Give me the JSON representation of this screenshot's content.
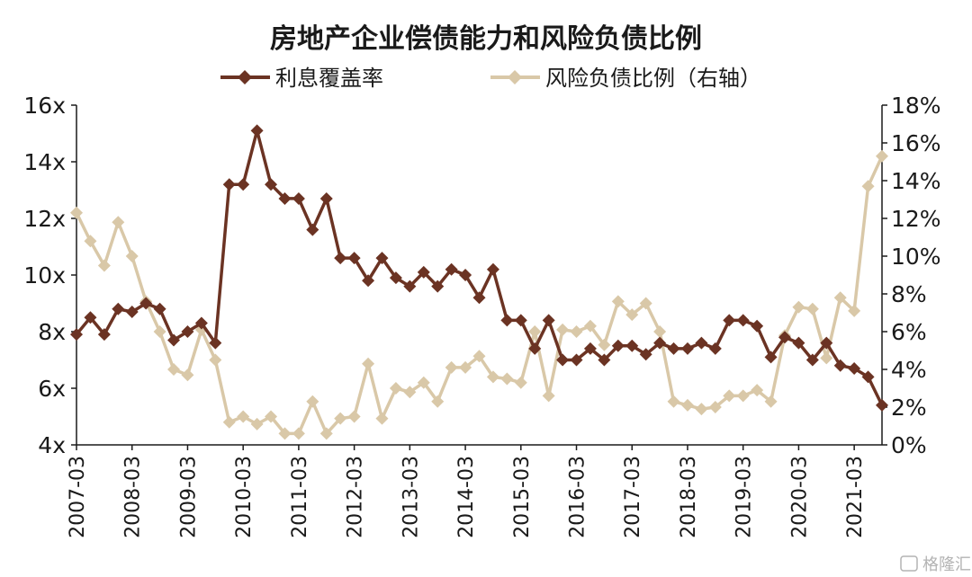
{
  "chart_data": {
    "type": "line",
    "title": "房地产企业偿债能力和风险负债比例",
    "x": [
      "2007-03",
      "2007-06",
      "2007-09",
      "2007-12",
      "2008-03",
      "2008-06",
      "2008-09",
      "2008-12",
      "2009-03",
      "2009-06",
      "2009-09",
      "2009-12",
      "2010-03",
      "2010-06",
      "2010-09",
      "2010-12",
      "2011-03",
      "2011-06",
      "2011-09",
      "2011-12",
      "2012-03",
      "2012-06",
      "2012-09",
      "2012-12",
      "2013-03",
      "2013-06",
      "2013-09",
      "2013-12",
      "2014-03",
      "2014-06",
      "2014-09",
      "2014-12",
      "2015-03",
      "2015-06",
      "2015-09",
      "2015-12",
      "2016-03",
      "2016-06",
      "2016-09",
      "2016-12",
      "2017-03",
      "2017-06",
      "2017-09",
      "2017-12",
      "2018-03",
      "2018-06",
      "2018-09",
      "2018-12",
      "2019-03",
      "2019-06",
      "2019-09",
      "2019-12",
      "2020-03",
      "2020-06",
      "2020-09",
      "2020-12",
      "2021-03",
      "2021-06",
      "2021-09"
    ],
    "xtick_labels": [
      "2007-03",
      "2008-03",
      "2009-03",
      "2010-03",
      "2011-03",
      "2012-03",
      "2013-03",
      "2014-03",
      "2015-03",
      "2016-03",
      "2017-03",
      "2018-03",
      "2019-03",
      "2020-03",
      "2021-03"
    ],
    "series": [
      {
        "name": "利息覆盖率",
        "axis": "left",
        "color": "#6b3323",
        "marker": "diamond",
        "values": [
          7.9,
          8.5,
          7.9,
          8.8,
          8.7,
          9.0,
          8.8,
          7.7,
          8.0,
          8.3,
          7.6,
          13.2,
          13.2,
          15.1,
          13.2,
          12.7,
          12.7,
          11.6,
          12.7,
          10.6,
          10.6,
          9.8,
          10.6,
          9.9,
          9.6,
          10.1,
          9.6,
          10.2,
          10.0,
          9.2,
          10.2,
          8.4,
          8.4,
          7.4,
          8.4,
          7.0,
          7.0,
          7.4,
          7.0,
          7.5,
          7.5,
          7.2,
          7.6,
          7.4,
          7.4,
          7.6,
          7.4,
          8.4,
          8.4,
          8.2,
          7.1,
          7.8,
          7.6,
          7.0,
          7.6,
          6.8,
          6.7,
          6.4,
          5.4
        ]
      },
      {
        "name": "风险负债比例（右轴）",
        "axis": "right",
        "color": "#d9c8a8",
        "marker": "diamond",
        "values": [
          12.3,
          10.8,
          9.5,
          11.8,
          10.0,
          7.6,
          6.0,
          4.0,
          3.7,
          6.1,
          4.5,
          1.2,
          1.5,
          1.1,
          1.5,
          0.6,
          0.6,
          2.3,
          0.6,
          1.4,
          1.5,
          4.3,
          1.4,
          3.0,
          2.8,
          3.3,
          2.3,
          4.1,
          4.1,
          4.7,
          3.6,
          3.5,
          3.3,
          6.0,
          2.6,
          6.1,
          6.0,
          6.3,
          5.3,
          7.6,
          6.9,
          7.5,
          6.0,
          2.3,
          2.1,
          1.9,
          2.0,
          2.6,
          2.6,
          2.9,
          2.3,
          5.8,
          7.3,
          7.2,
          4.6,
          7.8,
          7.1,
          13.7,
          15.3
        ]
      }
    ],
    "ylim_left": [
      4,
      16
    ],
    "yticks_left": [
      "4x",
      "6x",
      "8x",
      "10x",
      "12x",
      "14x",
      "16x"
    ],
    "ylim_right": [
      0,
      18
    ],
    "yticks_right": [
      "0%",
      "2%",
      "4%",
      "6%",
      "8%",
      "10%",
      "12%",
      "14%",
      "16%",
      "18%"
    ],
    "grid": false,
    "legend_position": "top-center"
  },
  "watermark": "格隆汇"
}
